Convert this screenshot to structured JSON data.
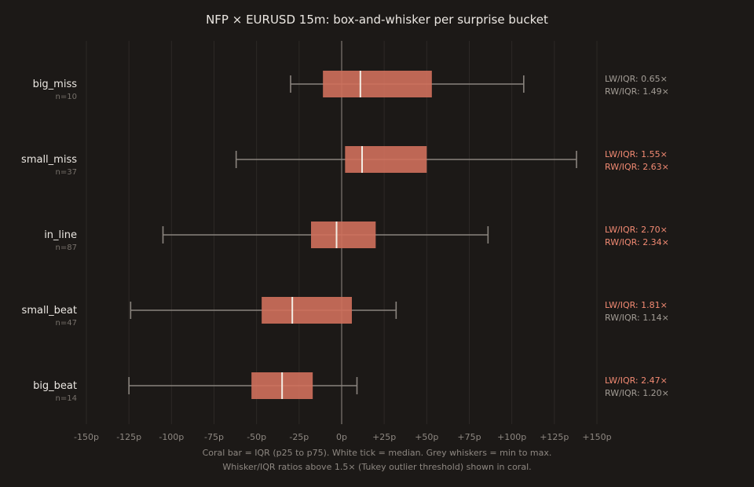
{
  "chart_data": {
    "type": "box",
    "orientation": "horizontal",
    "title": "NFP × EURUSD 15m: box-and-whisker per surprise bucket",
    "xlabel": "",
    "ylabel": "",
    "xlim": [
      -150,
      150
    ],
    "x_ticks": [
      -150,
      -125,
      -100,
      -75,
      -50,
      -25,
      0,
      25,
      50,
      75,
      100,
      125,
      150
    ],
    "x_tick_labels": [
      "-150p",
      "-125p",
      "-100p",
      "-75p",
      "-50p",
      "-25p",
      "0p",
      "+25p",
      "+50p",
      "+75p",
      "+100p",
      "+125p",
      "+150p"
    ],
    "grid": "vertical",
    "colors": {
      "background": "#1c1917",
      "box": "#d0705c",
      "median": "#f3ede4",
      "whisker": "#8a847e",
      "zero_line": "#6b6560",
      "grid": "#2d2926",
      "ratio_normal": "#a39d96",
      "ratio_outlier": "#f28a73"
    },
    "outlier_threshold": 1.5,
    "series": [
      {
        "name": "big_miss",
        "n_label": "n=10",
        "min": -30,
        "q1": -11,
        "median": 11,
        "q3": 53,
        "max": 107,
        "lw_label": "LW/IQR: 0.65×",
        "rw_label": "RW/IQR: 1.49×",
        "lw_ratio": 0.65,
        "rw_ratio": 1.49
      },
      {
        "name": "small_miss",
        "n_label": "n=37",
        "min": -62,
        "q1": 2,
        "median": 12,
        "q3": 50,
        "max": 138,
        "lw_label": "LW/IQR: 1.55×",
        "rw_label": "RW/IQR: 2.63×",
        "lw_ratio": 1.55,
        "rw_ratio": 2.63
      },
      {
        "name": "in_line",
        "n_label": "n=87",
        "min": -105,
        "q1": -18,
        "median": -3,
        "q3": 20,
        "max": 86,
        "lw_label": "LW/IQR: 2.70×",
        "rw_label": "RW/IQR: 2.34×",
        "lw_ratio": 2.7,
        "rw_ratio": 2.34
      },
      {
        "name": "small_beat",
        "n_label": "n=47",
        "min": -124,
        "q1": -47,
        "median": -29,
        "q3": 6,
        "max": 32,
        "lw_label": "LW/IQR: 1.81×",
        "rw_label": "RW/IQR: 1.14×",
        "lw_ratio": 1.81,
        "rw_ratio": 1.14
      },
      {
        "name": "big_beat",
        "n_label": "n=14",
        "min": -125,
        "q1": -53,
        "median": -35,
        "q3": -17,
        "max": 9,
        "lw_label": "LW/IQR: 2.47×",
        "rw_label": "RW/IQR: 1.20×",
        "lw_ratio": 2.47,
        "rw_ratio": 1.2
      }
    ],
    "footnotes": [
      "Coral bar = IQR (p25 to p75). White tick = median. Grey whiskers = min to max.",
      "Whisker/IQR ratios above 1.5× (Tukey outlier threshold) shown in coral."
    ]
  }
}
